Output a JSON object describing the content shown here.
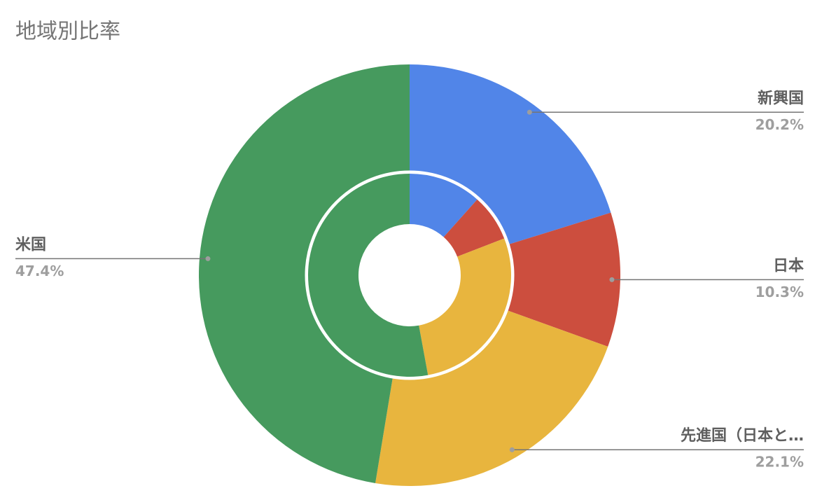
{
  "chart_data": {
    "type": "nested-donut",
    "title": "地域別比率",
    "categories": [
      "新興国",
      "日本",
      "先進国（日本と…",
      "米国"
    ],
    "colors": [
      "#5185e8",
      "#cc4e3e",
      "#e8b53e",
      "#469a5e"
    ],
    "series": [
      {
        "values": [
          20.2,
          10.3,
          22.1,
          47.4
        ],
        "value_labels": [
          "20.2%",
          "10.3%",
          "22.1%",
          "47.4%"
        ]
      },
      {
        "values": [
          11.6,
          7.5,
          28.0,
          52.9
        ]
      }
    ]
  }
}
